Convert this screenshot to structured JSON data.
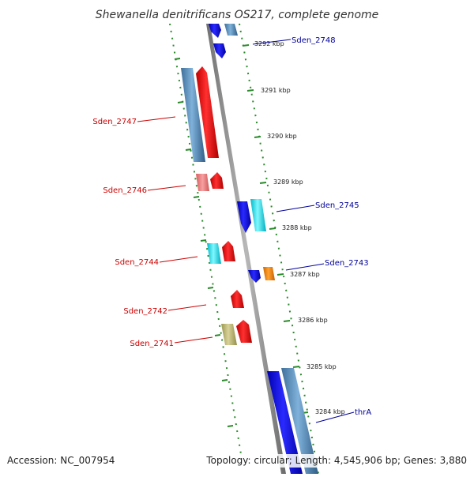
{
  "title": "Shewanella denitrificans OS217, complete genome",
  "footer": {
    "accession": "Accession: NC_007954",
    "info": "Topology: circular; Length: 4,545,906 bp; Genes: 3,880"
  },
  "colors": {
    "left_label": "#cc0000",
    "right_label": "#000099",
    "ticks": "#2a8a2a",
    "backbone": "#888888"
  },
  "ticks": [
    {
      "kbp": 3292,
      "label": "3292 kbp"
    },
    {
      "kbp": 3291,
      "label": "3291 kbp"
    },
    {
      "kbp": 3290,
      "label": "3290 kbp"
    },
    {
      "kbp": 3289,
      "label": "3289 kbp"
    },
    {
      "kbp": 3288,
      "label": "3288 kbp"
    },
    {
      "kbp": 3287,
      "label": "3287 kbp"
    },
    {
      "kbp": 3286,
      "label": "3286 kbp"
    },
    {
      "kbp": 3285,
      "label": "3285 kbp"
    },
    {
      "kbp": 3284,
      "label": "3284 kbp"
    }
  ],
  "gene_labels": [
    {
      "name": "Sden_2748",
      "side": "right"
    },
    {
      "name": "Sden_2747",
      "side": "left"
    },
    {
      "name": "Sden_2746",
      "side": "left"
    },
    {
      "name": "Sden_2745",
      "side": "right"
    },
    {
      "name": "Sden_2744",
      "side": "left"
    },
    {
      "name": "Sden_2743",
      "side": "right"
    },
    {
      "name": "Sden_2742",
      "side": "left"
    },
    {
      "name": "Sden_2741",
      "side": "left"
    },
    {
      "name": "thrA",
      "side": "right"
    }
  ]
}
